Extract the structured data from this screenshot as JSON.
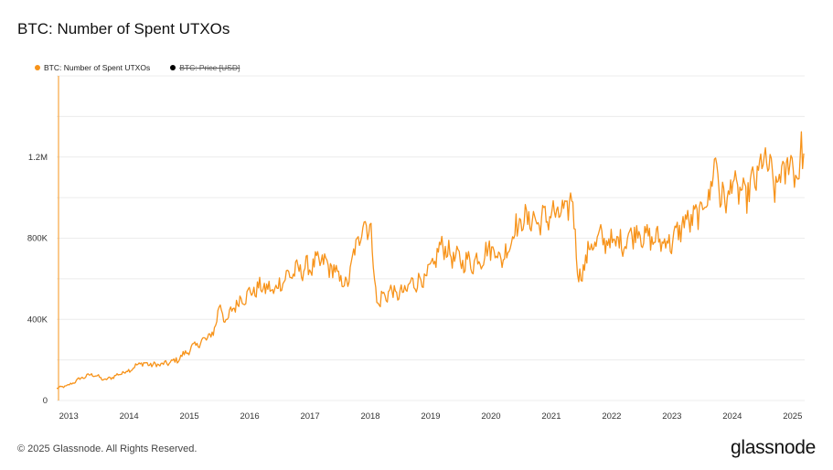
{
  "chart_data": {
    "type": "line",
    "title": "BTC: Number of Spent UTXOs",
    "series": [
      {
        "name": "BTC: Number of Spent UTXOs",
        "color": "#f7931a",
        "visible": true,
        "x": [
          2012.8,
          2013.0,
          2013.2,
          2013.4,
          2013.6,
          2013.8,
          2014.0,
          2014.2,
          2014.4,
          2014.6,
          2014.8,
          2015.0,
          2015.2,
          2015.4,
          2015.5,
          2015.6,
          2015.75,
          2015.9,
          2016.0,
          2016.2,
          2016.4,
          2016.6,
          2016.8,
          2017.0,
          2017.2,
          2017.4,
          2017.6,
          2017.8,
          2017.9,
          2018.0,
          2018.1,
          2018.15,
          2018.2,
          2018.25,
          2018.3,
          2018.5,
          2018.7,
          2018.9,
          2019.0,
          2019.2,
          2019.3,
          2019.5,
          2019.7,
          2019.9,
          2020.0,
          2020.2,
          2020.4,
          2020.6,
          2020.8,
          2021.0,
          2021.2,
          2021.35,
          2021.45,
          2021.5,
          2021.6,
          2021.8,
          2022.0,
          2022.2,
          2022.4,
          2022.6,
          2022.8,
          2023.0,
          2023.2,
          2023.4,
          2023.6,
          2023.75,
          2023.8,
          2023.9,
          2024.0,
          2024.2,
          2024.4,
          2024.55,
          2024.7,
          2024.9,
          2025.0,
          2025.1,
          2025.15,
          2025.2
        ],
        "y": [
          60000,
          75000,
          110000,
          130000,
          100000,
          125000,
          150000,
          185000,
          175000,
          180000,
          200000,
          250000,
          290000,
          330000,
          480000,
          380000,
          470000,
          510000,
          530000,
          560000,
          540000,
          610000,
          640000,
          660000,
          690000,
          640000,
          560000,
          800000,
          880000,
          860000,
          500000,
          470000,
          520000,
          510000,
          540000,
          520000,
          580000,
          600000,
          640000,
          780000,
          720000,
          690000,
          680000,
          720000,
          760000,
          690000,
          850000,
          900000,
          880000,
          920000,
          920000,
          990000,
          620000,
          600000,
          740000,
          800000,
          780000,
          780000,
          840000,
          800000,
          790000,
          780000,
          880000,
          900000,
          1000000,
          1200000,
          1000000,
          980000,
          1080000,
          1000000,
          1100000,
          1200000,
          1050000,
          1150000,
          1180000,
          1080000,
          1260000,
          1200000
        ]
      },
      {
        "name": "BTC: Price [USD]",
        "color": "#000000",
        "visible": false
      }
    ],
    "x_ticks": [
      "2013",
      "2014",
      "2015",
      "2016",
      "2017",
      "2018",
      "2019",
      "2020",
      "2021",
      "2022",
      "2023",
      "2024",
      "2025"
    ],
    "y_ticks": [
      {
        "value": 0,
        "label": "0"
      },
      {
        "value": 400000,
        "label": "400K"
      },
      {
        "value": 800000,
        "label": "800K"
      },
      {
        "value": 1200000,
        "label": "1.2M"
      }
    ],
    "xlim": [
      2012.8,
      2025.2
    ],
    "ylim": [
      0,
      1600000
    ],
    "grid": true,
    "legend_position": "top-left"
  },
  "footer": {
    "copyright": "© 2025 Glassnode. All Rights Reserved.",
    "brand": "glassnode"
  }
}
